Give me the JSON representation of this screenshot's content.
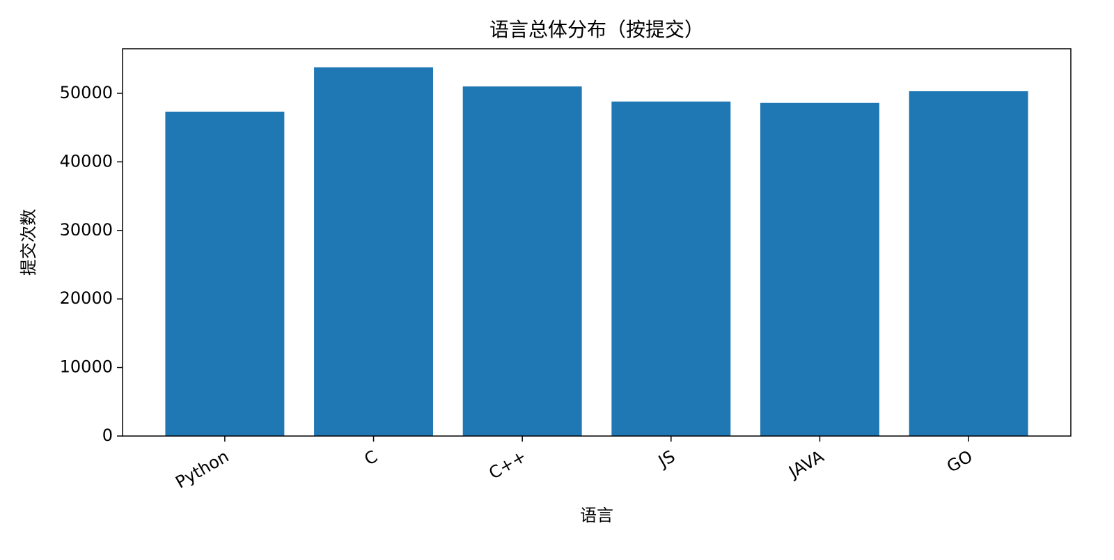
{
  "chart_data": {
    "type": "bar",
    "title": "语言总体分布（按提交）",
    "x_label": "语言",
    "y_label": "提交次数",
    "categories": [
      "Python",
      "C",
      "C++",
      "JS",
      "JAVA",
      "GO"
    ],
    "values": [
      47300,
      53800,
      51000,
      48800,
      48600,
      50300
    ],
    "color": "#1f77b4",
    "ylim": [
      0,
      56500
    ],
    "yticks": [
      0,
      10000,
      20000,
      30000,
      40000,
      50000
    ]
  }
}
